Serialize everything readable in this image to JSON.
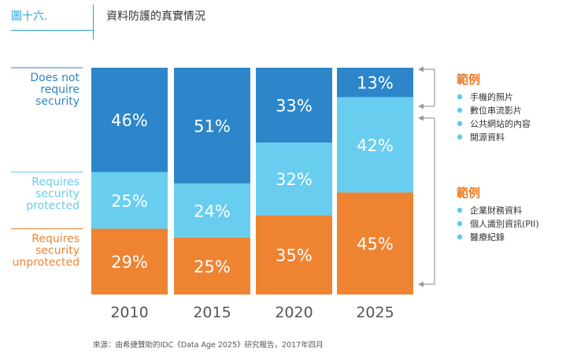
{
  "header": {
    "figure_label": "圖十六.",
    "title": "資料防護的真實情況"
  },
  "chart_data": {
    "type": "bar",
    "stacked": true,
    "percent": true,
    "categories": [
      "2010",
      "2015",
      "2020",
      "2025"
    ],
    "series": [
      {
        "name": "Requires security unprotected",
        "color": "#ee8432",
        "values": [
          29,
          25,
          35,
          45
        ]
      },
      {
        "name": "Requires security protected",
        "color": "#69cdef",
        "values": [
          25,
          24,
          32,
          42
        ]
      },
      {
        "name": "Does not require security",
        "color": "#2d86c9",
        "values": [
          46,
          51,
          33,
          13
        ]
      }
    ],
    "category_labels": [
      {
        "lines": [
          "Does not",
          "require",
          "security"
        ],
        "color": "#2d86c9"
      },
      {
        "lines": [
          "Requires",
          "security",
          "protected"
        ],
        "color": "#69cdef"
      },
      {
        "lines": [
          "Requires",
          "security",
          "unprotected"
        ],
        "color": "#ee8432"
      }
    ],
    "legend": [
      {
        "title": "範例",
        "items": [
          "手機的照片",
          "數位串流影片",
          "公共網站的內容",
          "開源資料"
        ]
      },
      {
        "title": "範例",
        "items": [
          "企業財務資料",
          "個人識別資訊(PII)",
          "醫療紀錄"
        ]
      }
    ],
    "colors": {
      "legend_title": "#ee7a22",
      "legend_bullet": "#62c9ee",
      "brace": "#999999"
    }
  },
  "source": "來源：由希捷贊助的IDC《Data Age 2025》研究報告，2017年四月"
}
